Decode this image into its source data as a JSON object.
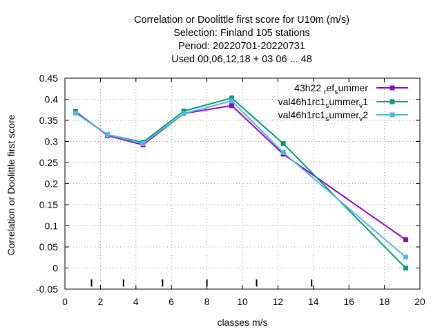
{
  "chart_data": {
    "type": "line",
    "title_lines": [
      "Correlation or Doolittle first score  for U10m (m/s)",
      "Selection: Finland    105 stations",
      "Period: 20220701-20220731",
      "Used  00,06,12,18  + 03 06 ... 48"
    ],
    "xlabel": "classes m/s",
    "ylabel": "Correlation or Doolittle first score",
    "xlim": [
      0,
      20
    ],
    "ylim": [
      -0.05,
      0.45
    ],
    "x_ticks": [
      0,
      2,
      4,
      6,
      8,
      10,
      12,
      14,
      16,
      18,
      20
    ],
    "x_tick_labels": [
      "0",
      "2",
      "4",
      "6",
      "8",
      "10",
      "12",
      "14",
      "16",
      "18",
      "20"
    ],
    "y_ticks": [
      -0.05,
      0,
      0.05,
      0.1,
      0.15,
      0.2,
      0.25,
      0.3,
      0.35,
      0.4,
      0.45
    ],
    "y_tick_labels": [
      "-0.05",
      "0",
      "0.05",
      "0.1",
      "0.15",
      "0.2",
      "0.25",
      "0.3",
      "0.35",
      "0.4",
      "0.45"
    ],
    "grid": true,
    "legend_position": "top-right",
    "class_boundaries": [
      1.5,
      3.3,
      5.5,
      8.0,
      10.8,
      13.9
    ],
    "series": [
      {
        "legend_main": "43h22",
        "legend_parts": [
          {
            "text": "43h22 ",
            "sub": false
          },
          {
            "text": "r",
            "sub": true
          },
          {
            "text": "ef",
            "sub": false
          },
          {
            "text": "s",
            "sub": true
          },
          {
            "text": "ummer",
            "sub": false
          }
        ],
        "color": "#9400d3",
        "x": [
          0.6,
          2.4,
          4.4,
          6.7,
          9.4,
          12.3,
          19.2
        ],
        "y": [
          0.371,
          0.314,
          0.292,
          0.366,
          0.385,
          0.27,
          0.067
        ]
      },
      {
        "legend_parts": [
          {
            "text": "val46h1rc1",
            "sub": false
          },
          {
            "text": "s",
            "sub": true
          },
          {
            "text": "ummer",
            "sub": false
          },
          {
            "text": "v",
            "sub": true
          },
          {
            "text": "1",
            "sub": false
          }
        ],
        "color": "#009e73",
        "x": [
          0.6,
          2.4,
          4.4,
          6.7,
          9.4,
          12.3,
          19.2
        ],
        "y": [
          0.369,
          0.316,
          0.298,
          0.372,
          0.403,
          0.295,
          0.0
        ]
      },
      {
        "legend_parts": [
          {
            "text": "val46h1rc1",
            "sub": false
          },
          {
            "text": "s",
            "sub": true
          },
          {
            "text": "ummer",
            "sub": false
          },
          {
            "text": "v",
            "sub": true
          },
          {
            "text": "2",
            "sub": false
          }
        ],
        "color": "#56b4e9",
        "x": [
          0.6,
          2.4,
          4.4,
          6.7,
          9.4,
          12.3,
          19.2
        ],
        "y": [
          0.367,
          0.316,
          0.295,
          0.366,
          0.396,
          0.274,
          0.026
        ]
      }
    ]
  }
}
